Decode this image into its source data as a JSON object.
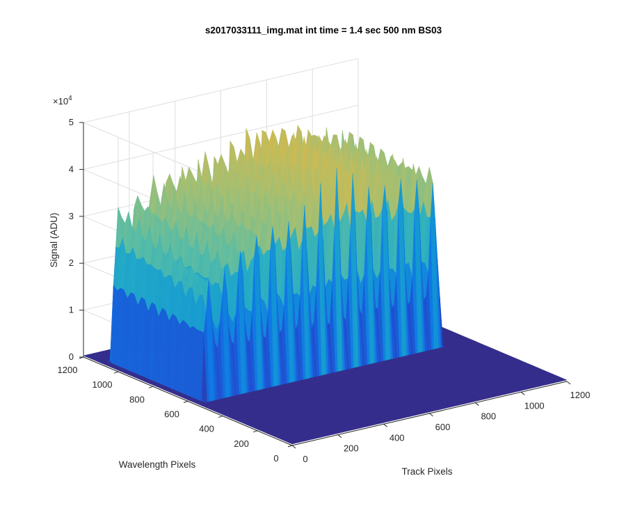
{
  "chart_data": {
    "type": "surface",
    "title": "s2017033111_img.mat int time = 1.4 sec  500 nm BS03",
    "xlabel": "Track Pixels",
    "ylabel": "Wavelength Pixels",
    "zlabel": "Signal (ADU)",
    "xlim": [
      0,
      1200
    ],
    "ylim": [
      0,
      1200
    ],
    "zlim": [
      0,
      50000
    ],
    "x_ticks": [
      "0",
      "200",
      "400",
      "600",
      "800",
      "1000",
      "1200"
    ],
    "y_ticks": [
      "0",
      "200",
      "400",
      "600",
      "800",
      "1000",
      "1200"
    ],
    "z_ticks": [
      "0",
      "1",
      "2",
      "3",
      "4",
      "5"
    ],
    "z_exponent_base": "×10",
    "z_exponent_power": "4",
    "grid": true,
    "colormap": [
      "#352a87",
      "#1f4fd0",
      "#0f78e4",
      "#1497d4",
      "#27aec4",
      "#5cbda3",
      "#a3bf73",
      "#d8b94a",
      "#f9e82a"
    ],
    "signal_region": {
      "track_pixel_range": [
        40,
        1070
      ],
      "wavelength_pixel_range": [
        550,
        1080
      ]
    },
    "peaks": {
      "track_pixels": [
        60,
        130,
        200,
        270,
        340,
        410,
        480,
        550,
        620,
        690,
        760,
        830,
        900,
        970,
        1040
      ],
      "signal_near": [
        25000,
        28000,
        31000,
        33000,
        35000,
        36000,
        37000,
        38000,
        40000,
        41000,
        40000,
        39000,
        38000,
        37000,
        36000
      ],
      "signal_far": [
        32000,
        34000,
        36000,
        37000,
        38000,
        39000,
        39000,
        40000,
        41000,
        42000,
        41000,
        40000,
        39000,
        38000,
        37000
      ]
    },
    "valley_signal": 11000,
    "background_signal": 300
  }
}
